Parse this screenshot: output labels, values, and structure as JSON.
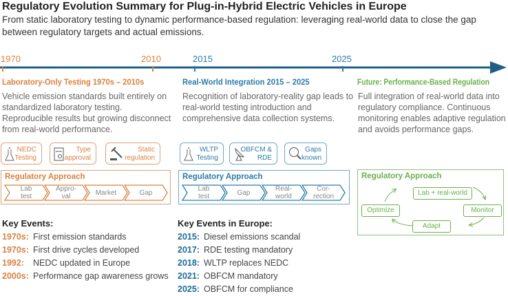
{
  "title": "Regulatory Evolution Summary for Plug-in-Hybrid Electric Vehicles in Europe",
  "subtitle": "From static laboratory testing to dynamic performance-based regulation: leveraging real-world data to close the gap between regulatory targets and actual emissions.",
  "colors": {
    "lab": "#d9823f",
    "realworld": "#2b7ba9",
    "future": "#6ab04c",
    "timeline": "#1f5f86"
  },
  "timeline": {
    "years": [
      "1970",
      "2010",
      "2015",
      "2025"
    ]
  },
  "columns": [
    {
      "heading": "Laboratory-Only Testing 1970s – 2010s",
      "description": "Vehicle emission standards built entirely on standardized laboratory testing. Reproducible results but growing disconnect from real-world performance.",
      "icons": [
        {
          "icon": "flask-icon",
          "label": "NEDC Testing"
        },
        {
          "icon": "certificate-icon",
          "label": "Type approval"
        },
        {
          "icon": "gavel-icon",
          "label": "Static regulation"
        }
      ],
      "approach_title": "Regulatory Approach",
      "steps": [
        "Lab test",
        "Appro-val",
        "Market",
        "Gap"
      ],
      "events_title": "Key Events:",
      "events": [
        {
          "year": "1970s:",
          "text": "First emission standards"
        },
        {
          "year": "1970s:",
          "text": "First drive cycles developed"
        },
        {
          "year": "1992:",
          "text": "NEDC updated in Europe"
        },
        {
          "year": "2000s:",
          "text": "Performance gap awareness grows"
        }
      ]
    },
    {
      "heading": "Real-World Integration 2015 – 2025",
      "description": "Recognition of laboratory-reality gap leads to real-world testing introduction and comprehensive data collection systems.",
      "icons": [
        {
          "icon": "flask-icon",
          "label": "WLTP Testing"
        },
        {
          "icon": "satellite-dish-icon",
          "label": "OBFCM & RDE"
        },
        {
          "icon": "magnifier-icon",
          "label": "Gaps known"
        }
      ],
      "approach_title": "Regulatory Approach",
      "steps": [
        "Lab test",
        "Gap",
        "Real-world",
        "Cor-rection"
      ],
      "events_title": "Key Events in Europe:",
      "events": [
        {
          "year": "2015:",
          "text": "Diesel emissions scandal"
        },
        {
          "year": "2017:",
          "text": "RDE testing mandatory"
        },
        {
          "year": "2018:",
          "text": "WLTP replaces NEDC"
        },
        {
          "year": "2021:",
          "text": "OBFCM mandatory"
        },
        {
          "year": "2025:",
          "text": "OBFCM for compliance"
        }
      ]
    },
    {
      "heading": "Future: Performance-Based Regulation",
      "description": "Full integration of real-world data into regulatory compliance. Continuous monitoring enables adaptive regulation and avoids performance gaps.",
      "approach_title": "Regulatory Approach",
      "cycle": [
        "Lab + real-world",
        "Monitor",
        "Adapt",
        "Optimize"
      ]
    }
  ]
}
